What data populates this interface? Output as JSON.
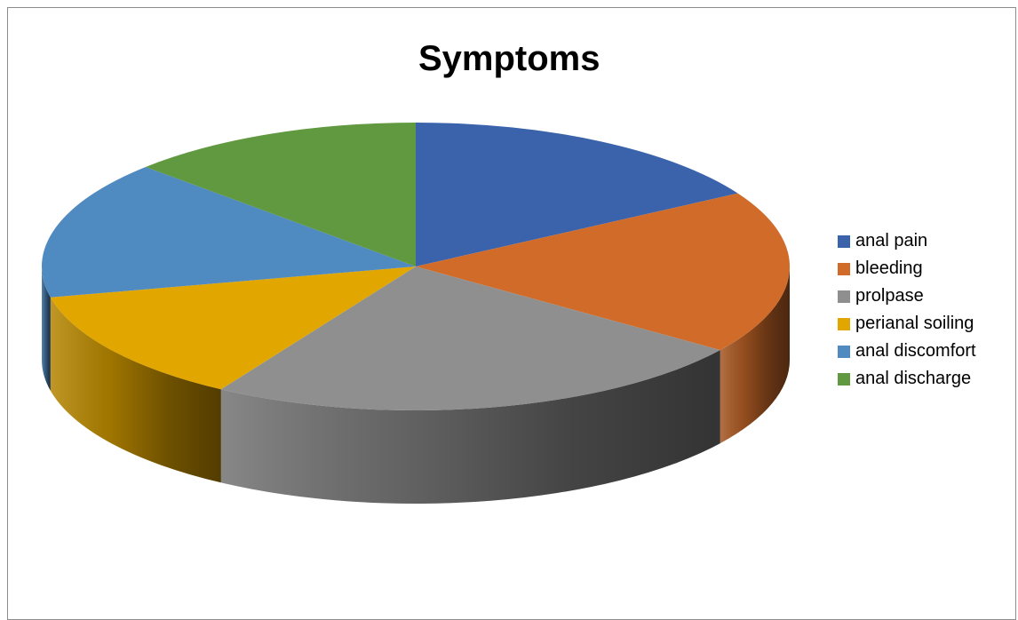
{
  "chart_data": {
    "type": "pie",
    "style": "3d",
    "title": "Symptoms",
    "legend_position": "right",
    "series": [
      {
        "values": [
          18,
          20,
          26,
          14,
          17,
          14
        ]
      }
    ],
    "categories": [
      "anal pain",
      "bleeding",
      "prolpase",
      "perianal soiling",
      "anal discomfort",
      "anal discharge"
    ],
    "colors": [
      "#3A63AC",
      "#D06B29",
      "#8F8F8F",
      "#E2A600",
      "#4F8AC0",
      "#60993F"
    ]
  }
}
